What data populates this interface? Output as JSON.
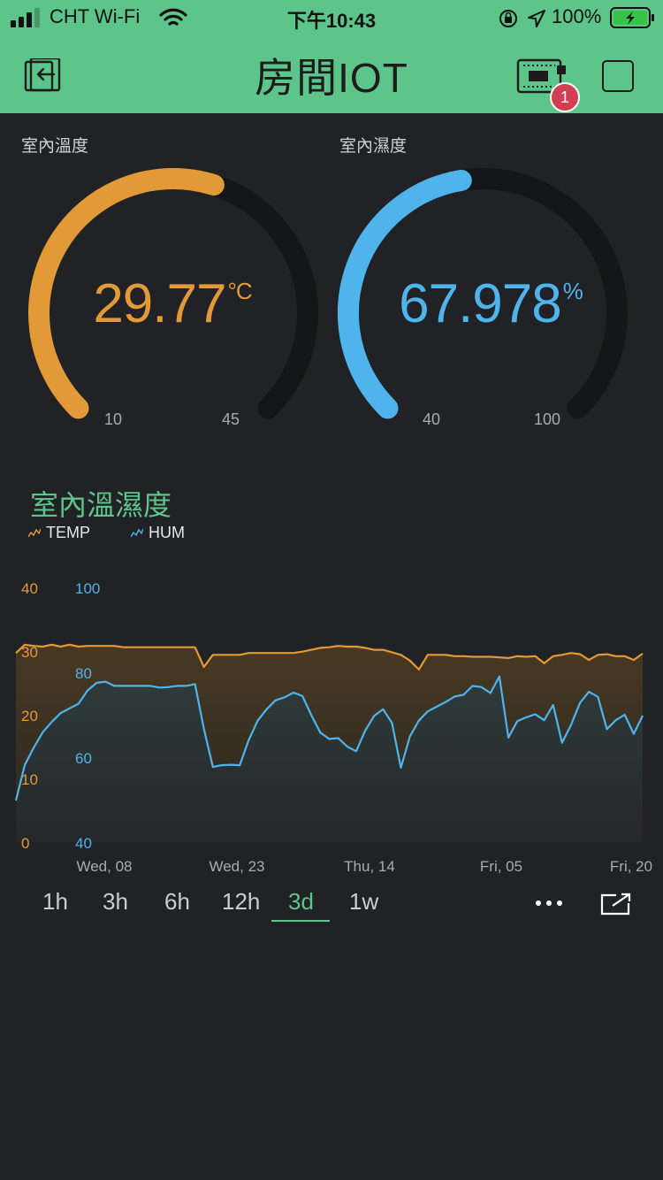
{
  "status_bar": {
    "carrier": "CHT Wi-Fi",
    "time": "下午10:43",
    "battery": "100%",
    "icons": [
      "signal-bars-icon",
      "wifi-icon",
      "orientation-lock-icon",
      "location-arrow-icon",
      "battery-charging-icon"
    ]
  },
  "header": {
    "title": "房間IOT",
    "badge_count": "1",
    "icons": [
      "exit-icon",
      "device-chip-icon",
      "stop-square-icon"
    ]
  },
  "gauges": [
    {
      "label": "室內溫度",
      "value": "29.77",
      "unit": "°C",
      "min": "10",
      "max": "45",
      "fraction": 0.565,
      "color": "#e29a38"
    },
    {
      "label": "室內濕度",
      "value": "67.978",
      "unit": "%",
      "min": "40",
      "max": "100",
      "fraction": 0.466,
      "color": "#4fb4ec"
    }
  ],
  "chart": {
    "title": "室內溫濕度",
    "legend": [
      {
        "name": "TEMP",
        "color": "#e29a38"
      },
      {
        "name": "HUM",
        "color": "#4fb4ec"
      }
    ],
    "range_tabs": [
      "1h",
      "3h",
      "6h",
      "12h",
      "3d",
      "1w"
    ],
    "active_tab": "3d",
    "icons": [
      "more-dots-icon",
      "expand-icon"
    ]
  },
  "chart_data": {
    "type": "line",
    "x_tick_labels": [
      "Wed, 08",
      "Wed, 23",
      "Thu, 14",
      "Fri, 05",
      "Fri, 20"
    ],
    "y_left": {
      "ticks": [
        "0",
        "10",
        "20",
        "30",
        "40"
      ],
      "ylim": [
        0,
        40
      ],
      "color": "#e29a38"
    },
    "y_right": {
      "ticks": [
        "40",
        "60",
        "80",
        "100"
      ],
      "ylim": [
        40,
        100
      ],
      "color": "#4fb4ec"
    },
    "series": [
      {
        "name": "TEMP",
        "axis": "left",
        "values": [
          29.7,
          31,
          30.8,
          30.7,
          31,
          30.7,
          31,
          30.7,
          30.8,
          30.8,
          30.8,
          30.8,
          30.6,
          30.6,
          30.6,
          30.6,
          30.6,
          30.6,
          30.6,
          30.6,
          30.6,
          27.5,
          29.4,
          29.4,
          29.4,
          29.4,
          29.7,
          29.7,
          29.7,
          29.7,
          29.7,
          29.7,
          29.9,
          30.2,
          30.5,
          30.6,
          30.8,
          30.7,
          30.7,
          30.5,
          30.2,
          30.2,
          29.8,
          29.4,
          28.5,
          27.1,
          29.4,
          29.4,
          29.4,
          29.2,
          29.2,
          29.1,
          29.1,
          29.1,
          29,
          28.9,
          29.2,
          29.1,
          29.2,
          28.1,
          29.2,
          29.4,
          29.7,
          29.5,
          28.6,
          29.4,
          29.5,
          29.2,
          29.2,
          28.6,
          29.6
        ]
      },
      {
        "name": "HUM",
        "axis": "right",
        "values": [
          49.8,
          58.2,
          62.3,
          65.9,
          68.3,
          70.4,
          71.5,
          72.6,
          75.7,
          77.5,
          77.8,
          76.8,
          76.8,
          76.8,
          76.8,
          76.8,
          76.4,
          76.5,
          76.8,
          76.8,
          77.2,
          66.6,
          57.7,
          58.1,
          58.2,
          58.1,
          64,
          68.6,
          71.3,
          73.4,
          74.1,
          75.2,
          74.4,
          69.9,
          65.8,
          64.3,
          64.5,
          62.5,
          61.4,
          66.2,
          69.7,
          71.3,
          68.1,
          57.5,
          64.9,
          68.6,
          70.8,
          71.9,
          73,
          74.3,
          74.7,
          76.8,
          76.5,
          75.1,
          79,
          64.6,
          68.5,
          69.4,
          70.1,
          68.7,
          72.3,
          63.4,
          67.6,
          72.8,
          75.4,
          74.2,
          66.6,
          68.7,
          70,
          65.5,
          69.8
        ]
      }
    ]
  }
}
